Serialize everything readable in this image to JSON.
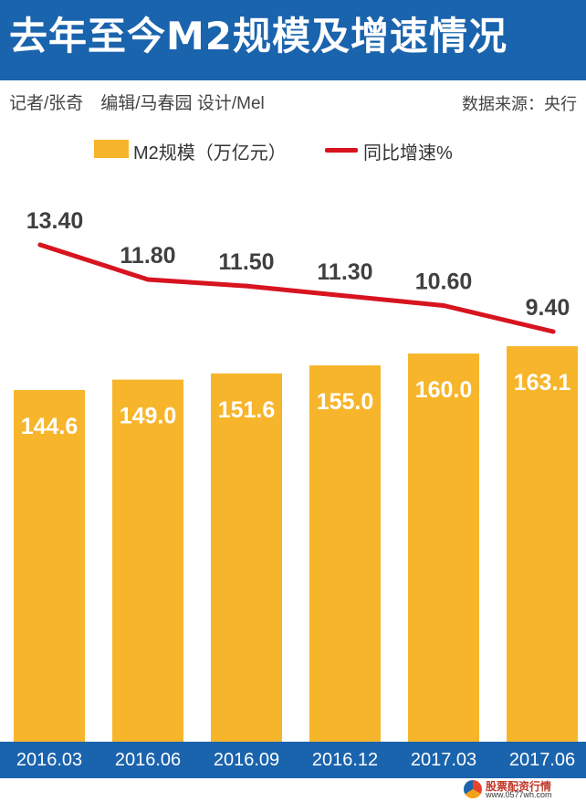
{
  "header": {
    "title": "去年至今M2规模及增速情况"
  },
  "credits": "记者/张奇　编辑/马春园  设计/Mel",
  "source": "数据来源：央行",
  "colors": {
    "header": "#1a63ad",
    "bar": "#f7b52c",
    "line": "#d7141f",
    "value_text": "#ffffff",
    "rate_text": "#404040"
  },
  "chart_data": {
    "type": "bar",
    "categories": [
      "2016.03",
      "2016.06",
      "2016.09",
      "2016.12",
      "2017.03",
      "2017.06"
    ],
    "series": [
      {
        "name": "M2规模（万亿元）",
        "type": "bar",
        "values": [
          144.6,
          149.0,
          151.6,
          155.0,
          160.0,
          163.1
        ]
      },
      {
        "name": "同比增速%",
        "type": "line",
        "values": [
          13.4,
          11.8,
          11.5,
          11.3,
          10.6,
          9.4
        ]
      }
    ],
    "bar_labels": [
      "144.6",
      "149.0",
      "151.6",
      "155.0",
      "160.0",
      "163.1"
    ],
    "line_labels": [
      "13.40",
      "11.80",
      "11.50",
      "11.30",
      "10.60",
      "9.40"
    ],
    "legend_position": "top-center",
    "grid": false
  },
  "footer": {
    "brand": "股票配资行情",
    "site": "www.0577wh.com"
  }
}
